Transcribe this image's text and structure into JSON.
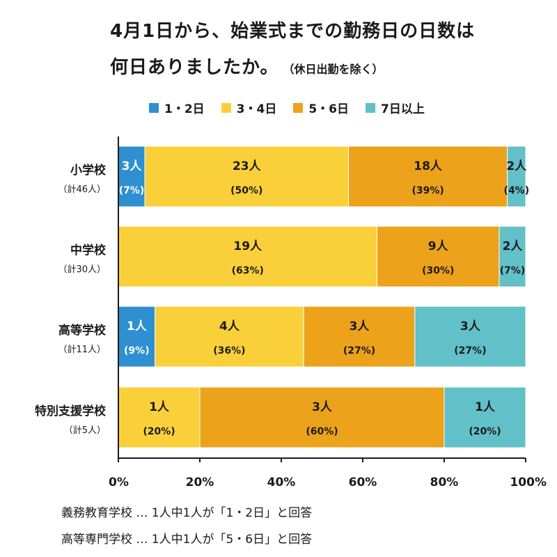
{
  "title": {
    "line1": "4月1日から、始業式までの勤務日の日数は",
    "line2": "何日ありましたか。",
    "note": "（休日出勤を除く）"
  },
  "legend": [
    {
      "label": "1・2日",
      "color": "#2e90d1"
    },
    {
      "label": "3・4日",
      "color": "#fad03a"
    },
    {
      "label": "5・6日",
      "color": "#eca21a"
    },
    {
      "label": "7日以上",
      "color": "#62c0c8"
    }
  ],
  "footnotes": [
    "義務教育学校 … 1人中1人が「1・2日」と回答",
    "高等専門学校 … 1人中1人が「5・6日」と回答"
  ],
  "chart_data": {
    "type": "bar",
    "orientation": "horizontal",
    "stacked": true,
    "categories": [
      {
        "name": "小学校",
        "total": "（計46人）"
      },
      {
        "name": "中学校",
        "total": "（計30人）"
      },
      {
        "name": "高等学校",
        "total": "（計11人）"
      },
      {
        "name": "特別支援学校",
        "total": "（計5人）"
      }
    ],
    "series": [
      {
        "name": "1・2日",
        "color": "#2e90d1",
        "values": [
          6.5,
          0,
          9,
          0
        ],
        "counts": [
          "3人",
          null,
          "1人",
          null
        ],
        "percents": [
          "(7%)",
          null,
          "(9%)",
          null
        ],
        "text_color": "#ffffff"
      },
      {
        "name": "3・4日",
        "color": "#fad03a",
        "values": [
          50,
          63.5,
          36.5,
          20
        ],
        "counts": [
          "23人",
          "19人",
          "4人",
          "1人"
        ],
        "percents": [
          "(50%)",
          "(63%)",
          "(36%)",
          "(20%)"
        ],
        "text_color": "#1a1a1a"
      },
      {
        "name": "5・6日",
        "color": "#eca21a",
        "values": [
          39,
          30,
          27.3,
          60
        ],
        "counts": [
          "18人",
          "9人",
          "3人",
          "3人"
        ],
        "percents": [
          "(39%)",
          "(30%)",
          "(27%)",
          "(60%)"
        ],
        "text_color": "#1a1a1a"
      },
      {
        "name": "7日以上",
        "color": "#62c0c8",
        "values": [
          4.5,
          6.5,
          27.2,
          20
        ],
        "counts": [
          "2人",
          "2人",
          "3人",
          "1人"
        ],
        "percents": [
          "(4%)",
          "(7%)",
          "(27%)",
          "(20%)"
        ],
        "text_color": "#1a1a1a"
      }
    ],
    "xticks": [
      "0%",
      "20%",
      "40%",
      "60%",
      "80%",
      "100%"
    ],
    "xlim": [
      0,
      100
    ],
    "legend_position": "top"
  }
}
